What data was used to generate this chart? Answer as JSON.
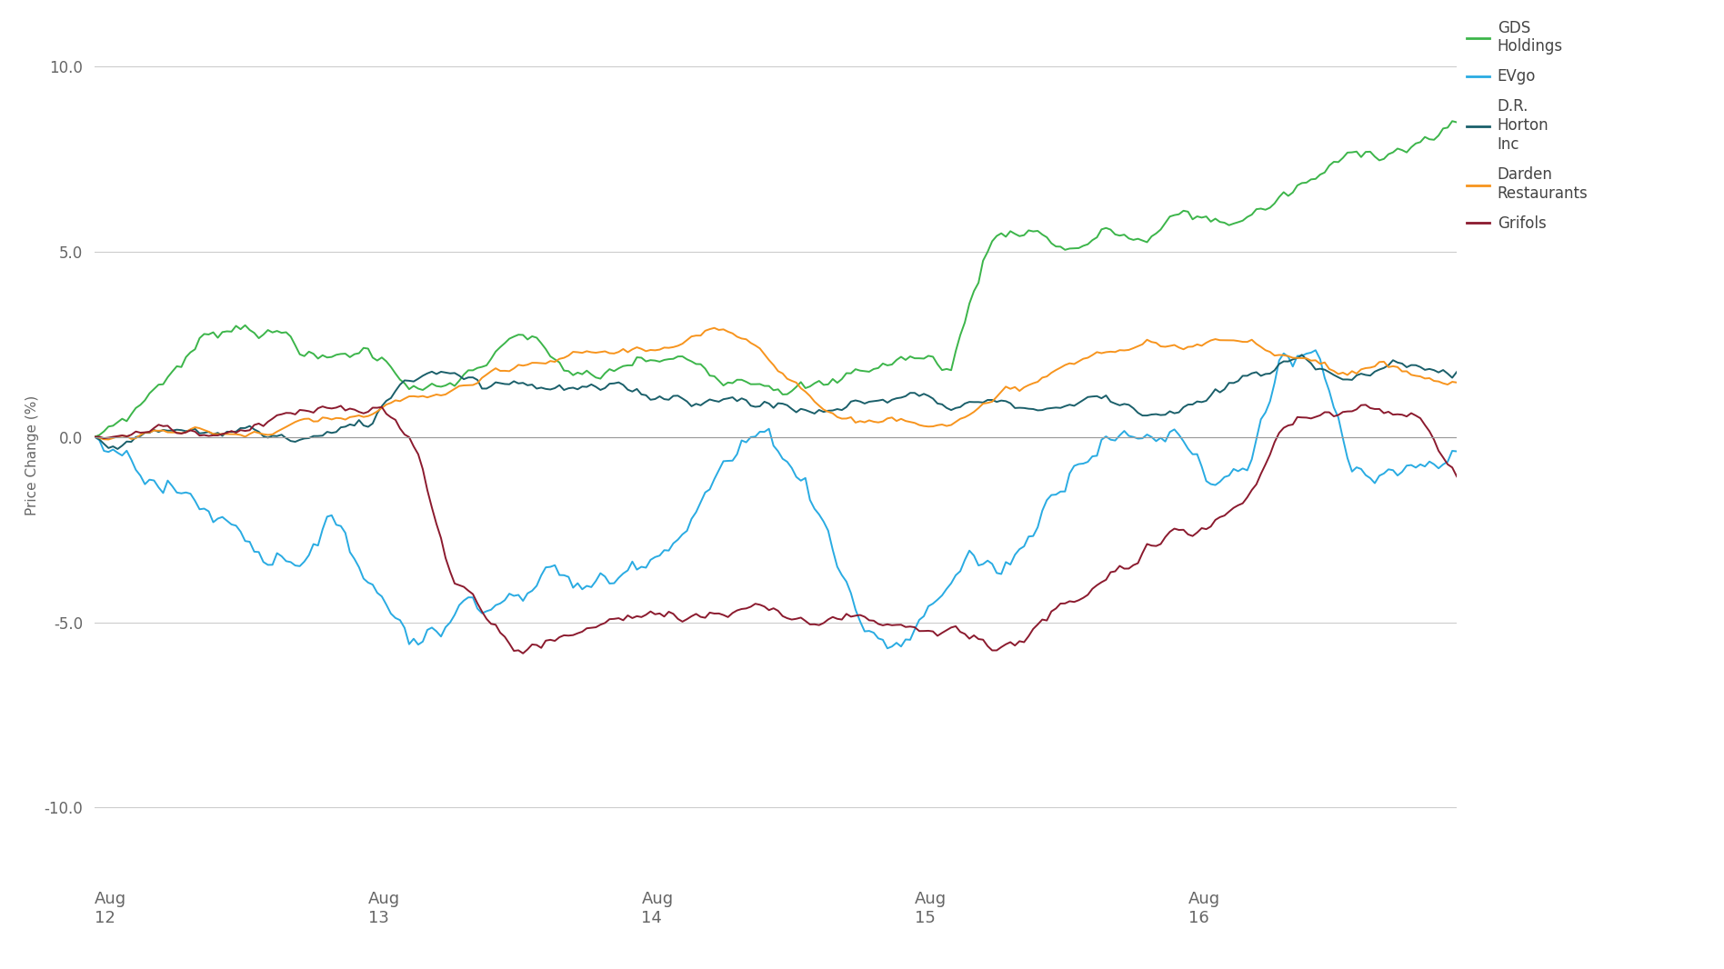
{
  "ylabel": "Price Change (%)",
  "ylim": [
    -12,
    11
  ],
  "yticks": [
    -10.0,
    -5.0,
    0.0,
    5.0,
    10.0
  ],
  "background_color": "#ffffff",
  "grid_color": "#cccccc",
  "series": {
    "GDS Holdings": {
      "color": "#3cb54a",
      "linewidth": 1.4,
      "legend_label": "GDS\nHoldings"
    },
    "EVgo": {
      "color": "#29abe2",
      "linewidth": 1.4,
      "legend_label": "EVgo"
    },
    "D.R. Horton Inc": {
      "color": "#1a5f6a",
      "linewidth": 1.4,
      "legend_label": "D.R.\nHorton\nInc"
    },
    "Darden Restaurants": {
      "color": "#f7941d",
      "linewidth": 1.4,
      "legend_label": "Darden\nRestaurants"
    },
    "Grifols": {
      "color": "#8b1a2e",
      "linewidth": 1.4,
      "legend_label": "Grifols"
    }
  },
  "series_order": [
    "GDS Holdings",
    "EVgo",
    "D.R. Horton Inc",
    "Darden Restaurants",
    "Grifols"
  ],
  "x_tick_labels": [
    "Aug\n12",
    "Aug\n13",
    "Aug\n14",
    "Aug\n15",
    "Aug\n16"
  ],
  "n_points": 300
}
